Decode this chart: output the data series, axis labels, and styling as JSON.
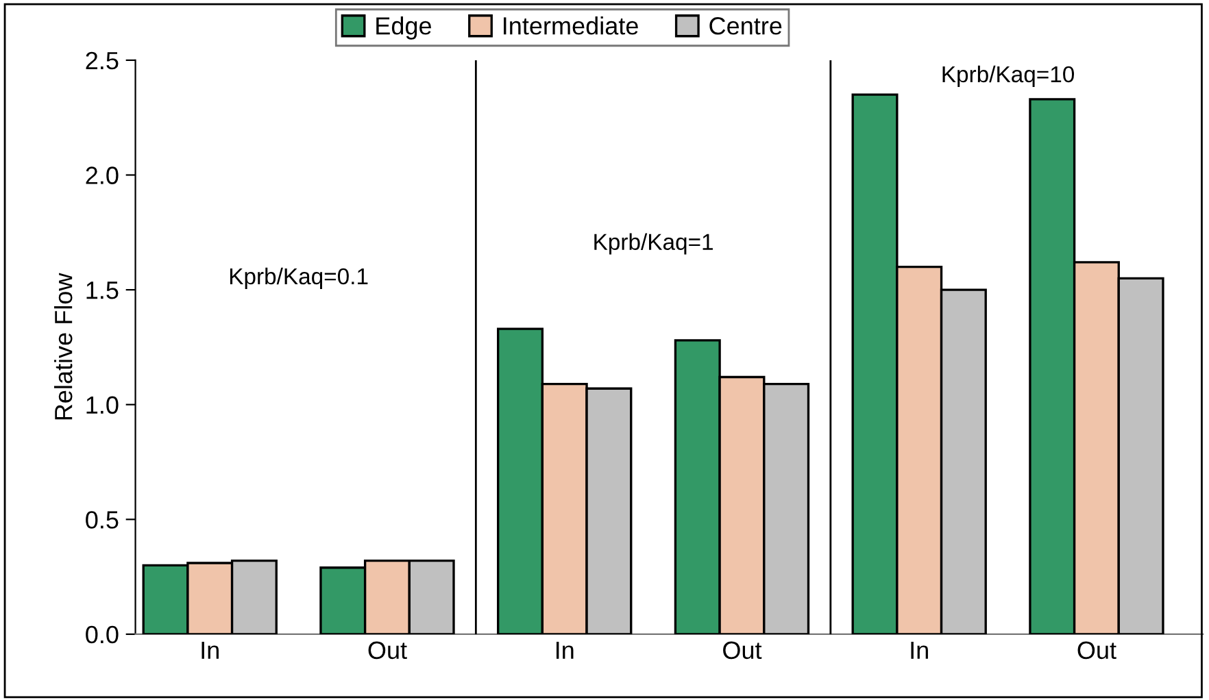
{
  "chart_data": {
    "type": "bar",
    "ylabel": "Relative Flow",
    "categories": [
      "In",
      "Out",
      "In",
      "Out",
      "In",
      "Out"
    ],
    "series": [
      {
        "name": "Edge",
        "color": "#339966",
        "values": [
          0.3,
          0.29,
          1.33,
          1.28,
          2.35,
          2.33
        ]
      },
      {
        "name": "Intermediate",
        "color": "#f0c4aa",
        "values": [
          0.31,
          0.32,
          1.09,
          1.12,
          1.6,
          1.62
        ]
      },
      {
        "name": "Centre",
        "color": "#c0c0c0",
        "values": [
          0.32,
          0.32,
          1.07,
          1.09,
          1.5,
          1.55
        ]
      }
    ],
    "ylim": [
      0,
      2.5
    ],
    "yticks": [
      {
        "value": 0,
        "label": "0.0"
      },
      {
        "value": 0.5,
        "label": "0.5"
      },
      {
        "value": 1,
        "label": "1.0"
      },
      {
        "value": 1.5,
        "label": "1.5"
      },
      {
        "value": 2,
        "label": "2.0"
      },
      {
        "value": 2.5,
        "label": "2.5"
      }
    ],
    "annotations": [
      "Kprb/Kaq=0.1",
      "Kprb/Kaq=1",
      "Kprb/Kaq=10"
    ],
    "legend": "top",
    "grid": false
  }
}
